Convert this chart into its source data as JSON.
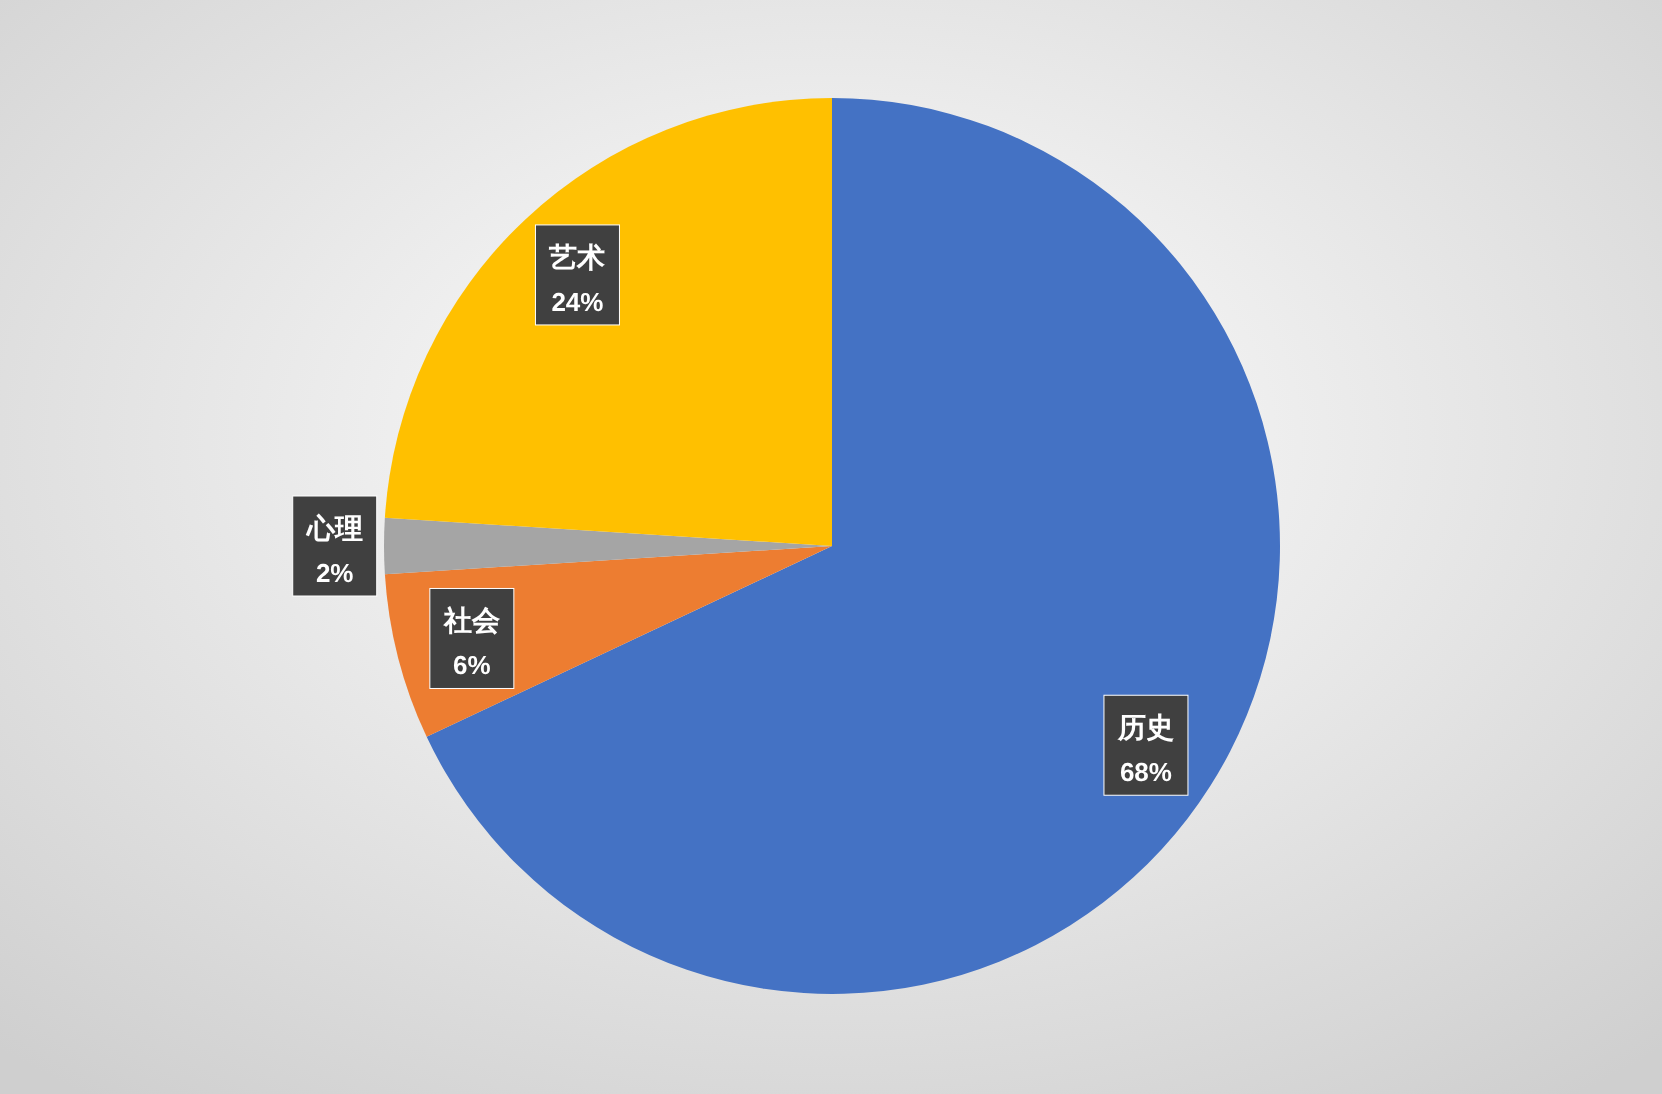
{
  "chart_data": {
    "type": "pie",
    "categories": [
      "历史",
      "社会",
      "心理",
      "艺术"
    ],
    "values": [
      68,
      6,
      2,
      24
    ],
    "colors": [
      "#4472c4",
      "#ed7d31",
      "#a5a5a5",
      "#ffc000"
    ],
    "value_labels": [
      "68%",
      "6%",
      "2%",
      "24%"
    ]
  }
}
